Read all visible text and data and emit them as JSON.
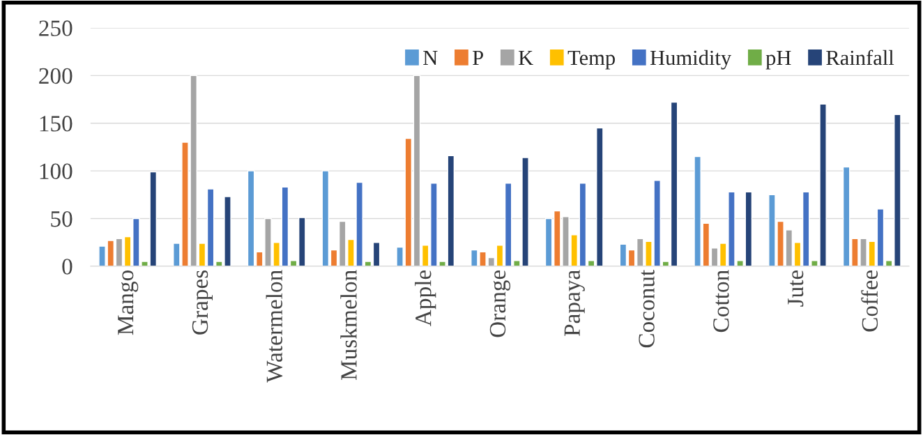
{
  "chart_data": {
    "type": "bar",
    "categories": [
      "Mango",
      "Grapes",
      "Watermelon",
      "Muskmelon",
      "Apple",
      "Orange",
      "Papaya",
      "Coconut",
      "Cotton",
      "Jute",
      "Coffee"
    ],
    "series": [
      {
        "name": "N",
        "color": "#5b9bd5",
        "values": [
          21,
          24,
          100,
          100,
          20,
          17,
          50,
          23,
          115,
          75,
          104
        ]
      },
      {
        "name": "P",
        "color": "#ed7d31",
        "values": [
          27,
          130,
          15,
          17,
          134,
          15,
          58,
          17,
          45,
          47,
          29
        ]
      },
      {
        "name": "K",
        "color": "#a5a5a5",
        "values": [
          29,
          200,
          50,
          47,
          200,
          9,
          52,
          29,
          19,
          38,
          29
        ]
      },
      {
        "name": "Temp",
        "color": "#ffc000",
        "values": [
          31,
          24,
          25,
          28,
          22,
          22,
          33,
          26,
          24,
          25,
          26
        ]
      },
      {
        "name": "Humidity",
        "color": "#4472c4",
        "values": [
          50,
          81,
          83,
          88,
          87,
          87,
          87,
          90,
          78,
          78,
          60
        ]
      },
      {
        "name": "pH",
        "color": "#70ad47",
        "values": [
          5,
          5,
          6,
          5,
          5,
          6,
          6,
          5,
          6,
          6,
          6
        ]
      },
      {
        "name": "Rainfall",
        "color": "#264478",
        "values": [
          99,
          73,
          51,
          25,
          116,
          114,
          145,
          172,
          78,
          170,
          159
        ]
      }
    ],
    "ylim": [
      0,
      250
    ],
    "yticks": [
      0,
      50,
      100,
      150,
      200,
      250
    ],
    "grid": "y",
    "legend": "top right"
  }
}
